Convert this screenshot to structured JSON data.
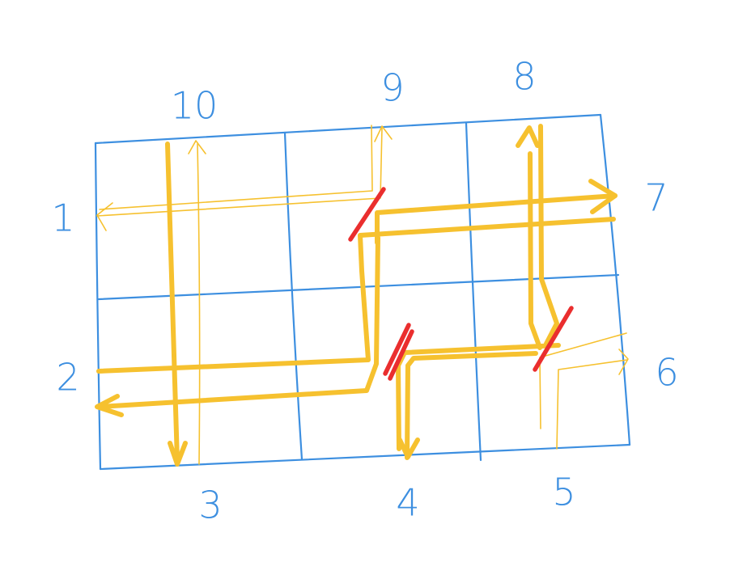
{
  "colors": {
    "grid": "#3d8fe0",
    "path": "#f6c12f",
    "cross": "#ea2e2e",
    "label": "#3d8fe0",
    "background": "#ffffff"
  },
  "grid": {
    "columns": 4,
    "rows": 3
  },
  "labels": {
    "l1": "1",
    "l2": "2",
    "l3": "3",
    "l4": "4",
    "l5": "5",
    "l6": "6",
    "l7": "7",
    "l8": "8",
    "l9": "9",
    "l10": "10"
  }
}
